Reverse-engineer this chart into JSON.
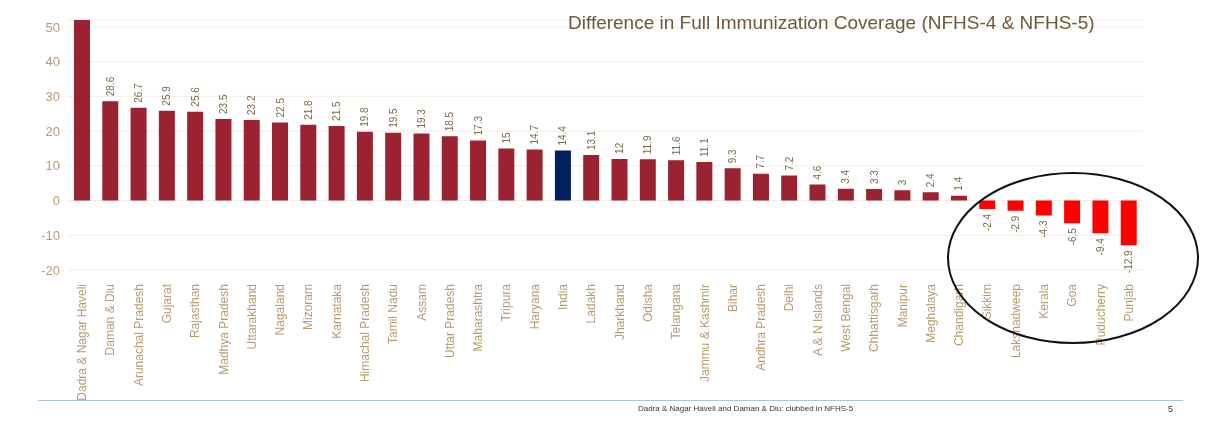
{
  "chart_data": {
    "type": "bar",
    "title": "Difference in Full Immunization Coverage (NFHS-4 & NFHS-5)",
    "categories": [
      "Dadra & Nagar Haveli",
      "Daman & Diu",
      "Arunachal Pradesh",
      "Gujarat",
      "Rajasthan",
      "Madhya Pradesh",
      "Uttarakhand",
      "Nagaland",
      "Mizoram",
      "Karnataka",
      "Himachal Pradesh",
      "Tamil Nadu",
      "Assam",
      "Uttar Pradesh",
      "Maharashtra",
      "Tripura",
      "Haryana",
      "India",
      "Ladakh",
      "Jharkhand",
      "Odisha",
      "Telangana",
      "Jammu & Kashmir",
      "Bihar",
      "Andhra Pradesh",
      "Delhi",
      "A & N Islands",
      "West Bengal",
      "Chhattisgarh",
      "Manipur",
      "Meghalaya",
      "Chandigarh",
      "Sikkim",
      "Lakshadweep",
      "Kerala",
      "Goa",
      "Puducherry",
      "Punjab"
    ],
    "values": [
      52,
      28.6,
      26.7,
      25.9,
      25.6,
      23.5,
      23.2,
      22.5,
      21.8,
      21.5,
      19.8,
      19.5,
      19.3,
      18.5,
      17.3,
      15,
      14.7,
      14.4,
      13.1,
      12,
      11.9,
      11.6,
      11.1,
      9.3,
      7.7,
      7.2,
      4.6,
      3.4,
      3.3,
      3,
      2.4,
      1.4,
      -2.4,
      -2.9,
      -4.3,
      -6.5,
      -9.4,
      -12.9
    ],
    "value_labels": [
      null,
      "28.6",
      "26.7",
      "25.9",
      "25.6",
      "23.5",
      "23.2",
      "22.5",
      "21.8",
      "21.5",
      "19.8",
      "19.5",
      "19.3",
      "18.5",
      "17.3",
      "15",
      "14.7",
      "14.4",
      "13.1",
      "12",
      "11.9",
      "11.6",
      "11.1",
      "9.3",
      "7.7",
      "7.2",
      "4.6",
      "3.4",
      "3.3",
      "3",
      "2.4",
      "1.4",
      "-2.4",
      "-2.9",
      "-4.3",
      "-6.5",
      "-9.4",
      "-12.9"
    ],
    "colors": [
      "#9b2230",
      "#9b2230",
      "#9b2230",
      "#9b2230",
      "#9b2230",
      "#9b2230",
      "#9b2230",
      "#9b2230",
      "#9b2230",
      "#9b2230",
      "#9b2230",
      "#9b2230",
      "#9b2230",
      "#9b2230",
      "#9b2230",
      "#9b2230",
      "#9b2230",
      "#002060",
      "#9b2230",
      "#9b2230",
      "#9b2230",
      "#9b2230",
      "#9b2230",
      "#9b2230",
      "#9b2230",
      "#9b2230",
      "#9b2230",
      "#9b2230",
      "#9b2230",
      "#9b2230",
      "#9b2230",
      "#9b2230",
      "#ff0000",
      "#ff0000",
      "#ff0000",
      "#ff0000",
      "#ff0000",
      "#ff0000"
    ],
    "ylim": [
      -20,
      52
    ],
    "yticks": [
      -20,
      -10,
      0,
      10,
      20,
      30,
      40,
      50
    ],
    "grid": "y",
    "legend": false,
    "annotations": [
      "Dadra & Nagar Haveli and Daman & Diu: clubbed in NFHS-5",
      "5"
    ]
  }
}
